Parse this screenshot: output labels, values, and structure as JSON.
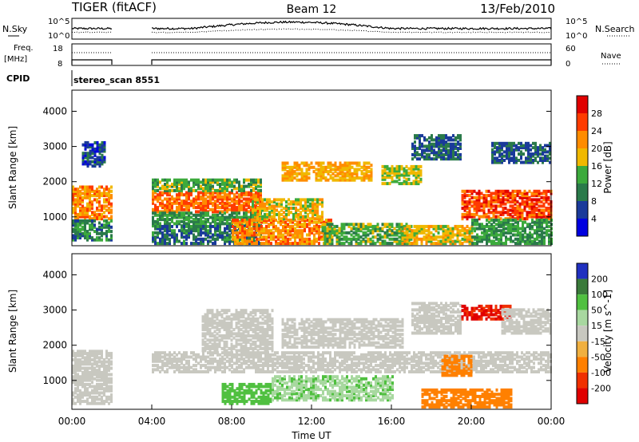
{
  "header": {
    "radar": "TIGER (fitACF)",
    "beam": "Beam 12",
    "date": "13/Feb/2010"
  },
  "top_panels": {
    "nsky_label": "N.Sky",
    "nsearch_label": "N.Search",
    "freq_label_line1": "Freq.",
    "freq_label_line2": "[MHz]",
    "nave_label": "Nave",
    "cpid_label": "CPID",
    "cpid_value": "stereo_scan 8551",
    "noise_left_ticks": [
      "10^5",
      "10^0"
    ],
    "noise_right_ticks": [
      "10^5",
      "10^0"
    ],
    "freq_left_ticks": [
      "18",
      "8"
    ],
    "nave_right_ticks": [
      "60",
      "0"
    ]
  },
  "chart_data": [
    {
      "type": "heatmap",
      "name": "power",
      "ylabel": "Slant Range [km]",
      "colorbar_label": "Power [dB]",
      "yticks": [
        1000,
        2000,
        3000,
        4000
      ],
      "ylim": [
        180,
        4600
      ],
      "colorbar_ticks": [
        "28",
        "24",
        "20",
        "16",
        "12",
        "8",
        "4"
      ],
      "colorbar_colors": [
        "#e00000",
        "#ff3b00",
        "#ff8c00",
        "#f0b800",
        "#3caa3c",
        "#2a7a4a",
        "#1a3a9a",
        "#0000e0"
      ],
      "regions": [
        {
          "t0": 0.0,
          "t1": 2.0,
          "r0": 900,
          "r1": 1850,
          "level": 22
        },
        {
          "t0": 0.0,
          "t1": 2.0,
          "r0": 300,
          "r1": 900,
          "level": 10
        },
        {
          "t0": 0.5,
          "t1": 1.7,
          "r0": 2400,
          "r1": 3100,
          "level": 6
        },
        {
          "t0": 4.0,
          "t1": 9.5,
          "r0": 1100,
          "r1": 1700,
          "level": 24
        },
        {
          "t0": 4.0,
          "t1": 9.5,
          "r0": 1700,
          "r1": 2050,
          "level": 14
        },
        {
          "t0": 4.0,
          "t1": 9.5,
          "r0": 700,
          "r1": 1100,
          "level": 12
        },
        {
          "t0": 4.0,
          "t1": 9.5,
          "r0": 200,
          "r1": 700,
          "level": 9
        },
        {
          "t0": 8.0,
          "t1": 13.0,
          "r0": 200,
          "r1": 900,
          "level": 22
        },
        {
          "t0": 9.0,
          "t1": 12.5,
          "r0": 900,
          "r1": 1500,
          "level": 18
        },
        {
          "t0": 10.5,
          "t1": 15.0,
          "r0": 2000,
          "r1": 2500,
          "level": 20
        },
        {
          "t0": 12.5,
          "t1": 17.0,
          "r0": 200,
          "r1": 800,
          "level": 14
        },
        {
          "t0": 15.5,
          "t1": 17.5,
          "r0": 1900,
          "r1": 2400,
          "level": 16
        },
        {
          "t0": 16.5,
          "t1": 20.0,
          "r0": 200,
          "r1": 700,
          "level": 18
        },
        {
          "t0": 17.0,
          "t1": 19.5,
          "r0": 2600,
          "r1": 3300,
          "level": 8
        },
        {
          "t0": 19.5,
          "t1": 24.0,
          "r0": 900,
          "r1": 1700,
          "level": 26
        },
        {
          "t0": 20.0,
          "t1": 24.0,
          "r0": 200,
          "r1": 900,
          "level": 12
        },
        {
          "t0": 21.0,
          "t1": 24.0,
          "r0": 2500,
          "r1": 3100,
          "level": 8
        }
      ]
    },
    {
      "type": "heatmap",
      "name": "velocity",
      "ylabel": "Slant Range [km]",
      "xlabel": "Time UT",
      "colorbar_label": "Velocity [m s^-1]",
      "yticks": [
        1000,
        2000,
        3000,
        4000
      ],
      "ylim": [
        180,
        4600
      ],
      "xticks": [
        "00:00",
        "04:00",
        "08:00",
        "12:00",
        "16:00",
        "20:00",
        "00:00"
      ],
      "xlim": [
        0,
        24
      ],
      "colorbar_ticks": [
        "200",
        "100",
        "50",
        "15",
        "-15",
        "-50",
        "-100",
        "-200"
      ],
      "colorbar_colors": [
        "#2030c0",
        "#3a7a3a",
        "#50c040",
        "#a8d8a0",
        "#c8c8c0",
        "#f0b040",
        "#ff8000",
        "#f03000",
        "#e00000"
      ],
      "regions": [
        {
          "t0": 0.0,
          "t1": 2.0,
          "r0": 1000,
          "r1": 1800,
          "level": 0
        },
        {
          "t0": 0.0,
          "t1": 2.0,
          "r0": 300,
          "r1": 1000,
          "level": 0
        },
        {
          "t0": 4.0,
          "t1": 24.0,
          "r0": 1200,
          "r1": 1800,
          "level": 0
        },
        {
          "t0": 6.5,
          "t1": 10.0,
          "r0": 1800,
          "r1": 3000,
          "level": -10
        },
        {
          "t0": 7.5,
          "t1": 10.0,
          "r0": 300,
          "r1": 900,
          "level": 70
        },
        {
          "t0": 10.0,
          "t1": 16.0,
          "r0": 400,
          "r1": 1100,
          "level": 30
        },
        {
          "t0": 10.5,
          "t1": 16.5,
          "r0": 1900,
          "r1": 2700,
          "level": 0
        },
        {
          "t0": 17.5,
          "t1": 22.0,
          "r0": 200,
          "r1": 700,
          "level": -60
        },
        {
          "t0": 18.5,
          "t1": 20.0,
          "r0": 1100,
          "r1": 1700,
          "level": -40
        },
        {
          "t0": 17.0,
          "t1": 19.5,
          "r0": 2300,
          "r1": 3200,
          "level": 0
        },
        {
          "t0": 19.5,
          "t1": 22.0,
          "r0": 2700,
          "r1": 3100,
          "level": -150
        },
        {
          "t0": 21.5,
          "t1": 24.0,
          "r0": 2300,
          "r1": 3000,
          "level": 10
        }
      ]
    }
  ]
}
